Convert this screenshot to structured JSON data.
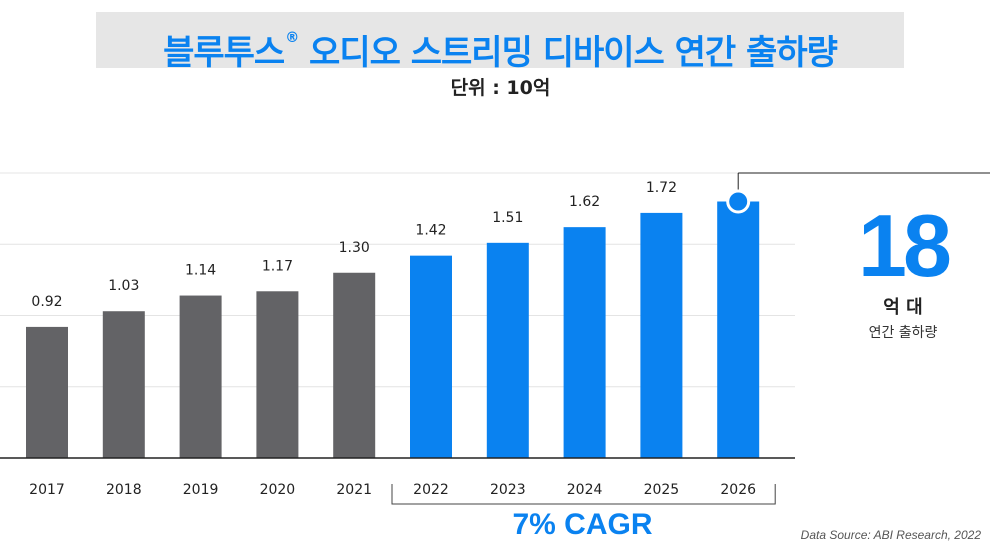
{
  "title": "블루투스",
  "title_mark": "®",
  "title_rest": " 오디오 스트리밍 디바이스 연간 출하량",
  "unit_label": "단위 : 10억",
  "highlight": {
    "value": "18",
    "unit": "억 대",
    "caption": "연간 출하량"
  },
  "cagr_label": "7% CAGR",
  "source": "Data Source: ABI Research, 2022",
  "colors": {
    "historical": "#636366",
    "forecast": "#0a82f0",
    "grid": "#e4e4e4",
    "axis": "#222222"
  },
  "chart_data": {
    "type": "bar",
    "categories": [
      "2017",
      "2018",
      "2019",
      "2020",
      "2021",
      "2022",
      "2023",
      "2024",
      "2025",
      "2026"
    ],
    "values": [
      0.92,
      1.03,
      1.14,
      1.17,
      1.3,
      1.42,
      1.51,
      1.62,
      1.72,
      1.8
    ],
    "data_labels": [
      "0.92",
      "1.03",
      "1.14",
      "1.17",
      "1.30",
      "1.42",
      "1.51",
      "1.62",
      "1.72",
      ""
    ],
    "forecast_from": "2022",
    "ylim": [
      0,
      2.0
    ],
    "grid": true,
    "xlabel": "",
    "ylabel": "",
    "title": "블루투스® 오디오 스트리밍 디바이스 연간 출하량"
  }
}
